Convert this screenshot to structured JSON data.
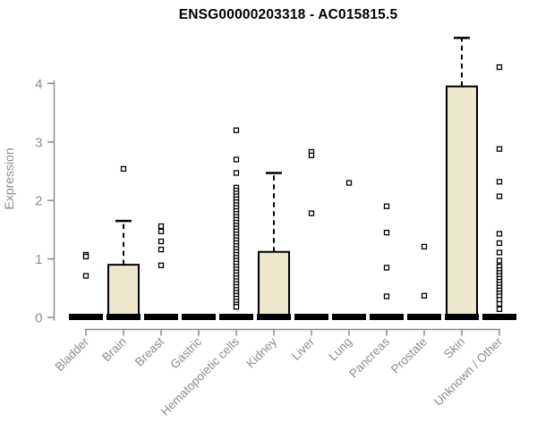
{
  "title": "ENSG00000203318 - AC015815.5",
  "y_axis": {
    "label": "Expression",
    "ticks": [
      "0",
      "1",
      "2",
      "3",
      "4"
    ]
  },
  "colors": {
    "box_fill": "#EDE7CD",
    "box_stroke": "#000000",
    "median_bar": "#000000",
    "axis": "#8C8C8C",
    "tick_text": "#8C8C8C",
    "title_text": "#000000",
    "outlier_fill": "#FFFFFF",
    "outlier_stroke": "#000000",
    "background": "#FFFFFF"
  },
  "chart_data": {
    "type": "boxplot",
    "title": "ENSG00000203318 - AC015815.5",
    "xlabel": "",
    "ylabel": "Expression",
    "ylim": [
      0,
      4
    ],
    "y_ticks": [
      0,
      1,
      2,
      3,
      4
    ],
    "grid": false,
    "categories": [
      "Bladder",
      "Brain",
      "Breast",
      "Gastric",
      "Hematopoietic cells",
      "Kidney",
      "Liver",
      "Lung",
      "Pancreas",
      "Prostate",
      "Skin",
      "Unknown / Other"
    ],
    "series": [
      {
        "name": "Bladder",
        "median": 0,
        "q1": 0,
        "q3": 0,
        "whisker_low": 0,
        "whisker_high": 0,
        "outliers": [
          1.07,
          1.04,
          0.71
        ]
      },
      {
        "name": "Brain",
        "median": 0,
        "q1": 0,
        "q3": 0.9,
        "whisker_low": 0,
        "whisker_high": 1.65,
        "outliers": [
          2.54
        ]
      },
      {
        "name": "Breast",
        "median": 0,
        "q1": 0,
        "q3": 0,
        "whisker_low": 0,
        "whisker_high": 0,
        "outliers": [
          1.56,
          1.47,
          1.3,
          1.16,
          0.89
        ]
      },
      {
        "name": "Gastric",
        "median": 0,
        "q1": 0,
        "q3": 0,
        "whisker_low": 0,
        "whisker_high": 0,
        "outliers": []
      },
      {
        "name": "Hematopoietic cells",
        "median": 0,
        "q1": 0,
        "q3": 0,
        "whisker_low": 0,
        "whisker_high": 0,
        "outliers": [
          3.2,
          2.7,
          2.47,
          2.22,
          2.17,
          2.12,
          2.07,
          2.02,
          1.97,
          1.92,
          1.87,
          1.82,
          1.77,
          1.72,
          1.67,
          1.62,
          1.57,
          1.52,
          1.47,
          1.42,
          1.37,
          1.32,
          1.27,
          1.22,
          1.17,
          1.12,
          1.07,
          1.02,
          0.97,
          0.92,
          0.87,
          0.82,
          0.77,
          0.72,
          0.67,
          0.62,
          0.57,
          0.52,
          0.47,
          0.42,
          0.37,
          0.32,
          0.27,
          0.22,
          0.18
        ]
      },
      {
        "name": "Kidney",
        "median": 0,
        "q1": 0,
        "q3": 1.12,
        "whisker_low": 0,
        "whisker_high": 2.47,
        "outliers": []
      },
      {
        "name": "Liver",
        "median": 0,
        "q1": 0,
        "q3": 0,
        "whisker_low": 0,
        "whisker_high": 0,
        "outliers": [
          2.83,
          2.77,
          1.78
        ]
      },
      {
        "name": "Lung",
        "median": 0,
        "q1": 0,
        "q3": 0,
        "whisker_low": 0,
        "whisker_high": 0,
        "outliers": [
          2.3
        ]
      },
      {
        "name": "Pancreas",
        "median": 0,
        "q1": 0,
        "q3": 0,
        "whisker_low": 0,
        "whisker_high": 0,
        "outliers": [
          1.9,
          1.45,
          0.85,
          0.36
        ]
      },
      {
        "name": "Prostate",
        "median": 0,
        "q1": 0,
        "q3": 0,
        "whisker_low": 0,
        "whisker_high": 0,
        "outliers": [
          1.21,
          0.37
        ]
      },
      {
        "name": "Skin",
        "median": 0,
        "q1": 0,
        "q3": 3.95,
        "whisker_low": 0,
        "whisker_high": 4.78,
        "outliers": []
      },
      {
        "name": "Unknown / Other",
        "median": 0,
        "q1": 0,
        "q3": 0,
        "whisker_low": 0,
        "whisker_high": 0,
        "outliers": [
          4.28,
          2.88,
          2.32,
          2.07,
          1.43,
          1.27,
          1.11,
          0.97,
          0.87,
          0.81,
          0.76,
          0.71,
          0.66,
          0.61,
          0.56,
          0.51,
          0.46,
          0.41,
          0.36,
          0.3,
          0.23,
          0.14
        ]
      }
    ]
  }
}
